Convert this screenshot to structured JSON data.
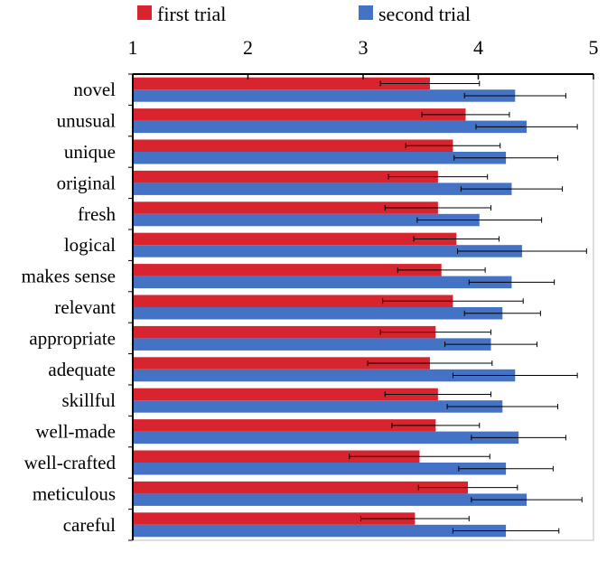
{
  "chart_data": {
    "type": "bar",
    "orientation": "horizontal",
    "xlim": [
      1,
      5
    ],
    "x_ticks": [
      "1",
      "2",
      "3",
      "4",
      "5"
    ],
    "x_axis_position": "top",
    "grid": false,
    "legend_position": "top",
    "categories": [
      "novel",
      "unusual",
      "unique",
      "original",
      "fresh",
      "logical",
      "makes sense",
      "relevant",
      "appropriate",
      "adequate",
      "skillful",
      "well-made",
      "well-crafted",
      "meticulous",
      "careful"
    ],
    "series": [
      {
        "name": "first trial",
        "color": "#d7242e",
        "values": [
          3.58,
          3.89,
          3.78,
          3.65,
          3.65,
          3.81,
          3.68,
          3.78,
          3.63,
          3.58,
          3.65,
          3.63,
          3.49,
          3.91,
          3.45
        ],
        "error": [
          0.43,
          0.38,
          0.41,
          0.43,
          0.46,
          0.37,
          0.38,
          0.61,
          0.48,
          0.54,
          0.46,
          0.38,
          0.61,
          0.43,
          0.47
        ]
      },
      {
        "name": "second trial",
        "color": "#4472c4",
        "values": [
          4.32,
          4.42,
          4.24,
          4.29,
          4.01,
          4.38,
          4.29,
          4.21,
          4.11,
          4.32,
          4.21,
          4.35,
          4.24,
          4.42,
          4.24
        ],
        "error": [
          0.44,
          0.44,
          0.45,
          0.44,
          0.54,
          0.56,
          0.37,
          0.33,
          0.4,
          0.54,
          0.48,
          0.41,
          0.41,
          0.48,
          0.46
        ]
      }
    ]
  }
}
